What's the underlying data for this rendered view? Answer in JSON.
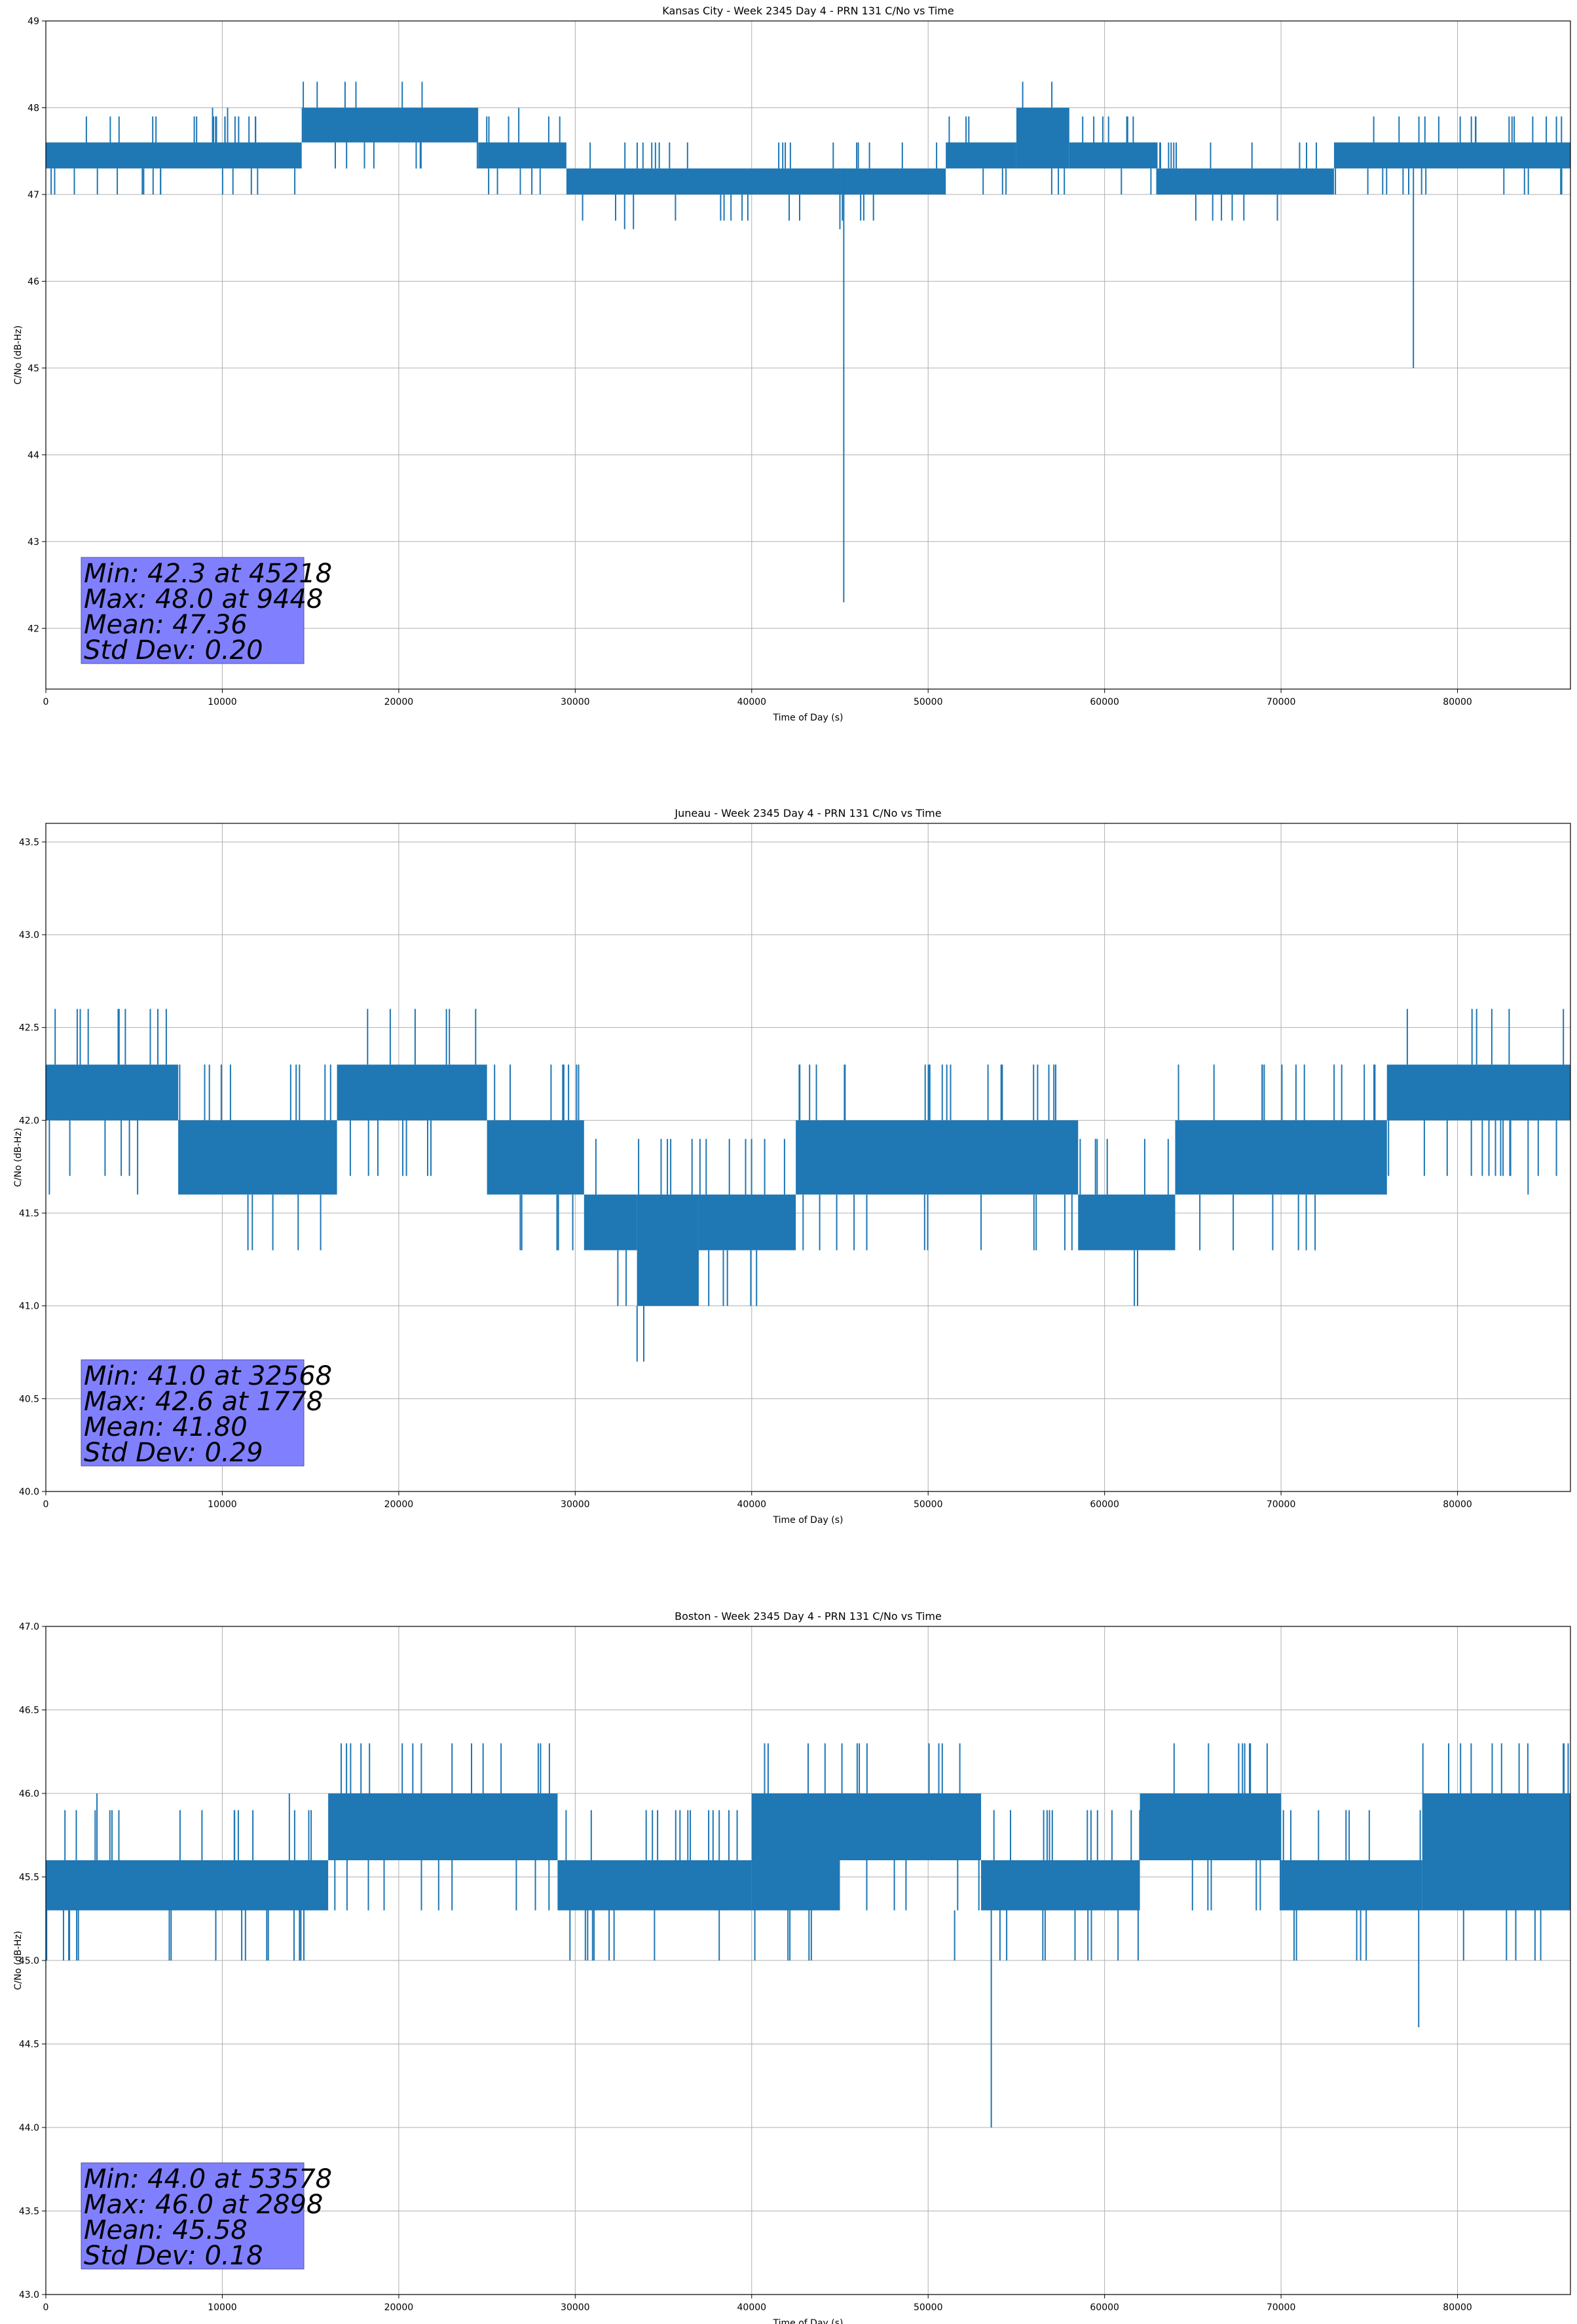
{
  "colors": {
    "series": "#1f77b4",
    "grid": "#b0b0b0",
    "stats_box": "#8080ff"
  },
  "chart_data": [
    {
      "type": "line",
      "title": "Kansas City - Week 2345 Day 4 - PRN 131 C/No vs Time",
      "xlabel": "Time of Day (s)",
      "ylabel": "C/No (dB-Hz)",
      "xlim": [
        0,
        86400
      ],
      "ylim": [
        41.3,
        49
      ],
      "x_ticks": [
        0,
        10000,
        20000,
        30000,
        40000,
        50000,
        60000,
        70000,
        80000
      ],
      "x_tick_labels": [
        "0",
        "10000",
        "20000",
        "30000",
        "40000",
        "50000",
        "60000",
        "70000",
        "80000"
      ],
      "y_ticks": [
        42,
        43,
        44,
        45,
        46,
        47,
        48,
        49
      ],
      "y_tick_labels": [
        "42",
        "43",
        "44",
        "45",
        "46",
        "47",
        "48",
        "49"
      ],
      "grid": true,
      "stats": [
        "Min: 42.3 at 45218",
        "Max: 48.0 at 9448",
        "Mean: 47.36",
        "Std Dev: 0.20"
      ],
      "bands": [
        {
          "x0": 0,
          "x1": 14500,
          "lo": 47.3,
          "hi": 47.6
        },
        {
          "x0": 14500,
          "x1": 24500,
          "lo": 47.6,
          "hi": 48.0
        },
        {
          "x0": 24500,
          "x1": 29500,
          "lo": 47.3,
          "hi": 47.6
        },
        {
          "x0": 29500,
          "x1": 51000,
          "lo": 47.0,
          "hi": 47.3
        },
        {
          "x0": 51000,
          "x1": 55000,
          "lo": 47.3,
          "hi": 47.6
        },
        {
          "x0": 55000,
          "x1": 58000,
          "lo": 47.3,
          "hi": 48.0
        },
        {
          "x0": 58000,
          "x1": 63000,
          "lo": 47.3,
          "hi": 47.6
        },
        {
          "x0": 63000,
          "x1": 73000,
          "lo": 47.0,
          "hi": 47.3
        },
        {
          "x0": 73000,
          "x1": 86400,
          "lo": 47.3,
          "hi": 47.6
        }
      ],
      "spikes": [
        {
          "x": 45218,
          "lo": 42.3,
          "hi": 47.3
        },
        {
          "x": 45000,
          "lo": 46.6,
          "hi": 47.3
        },
        {
          "x": 32800,
          "lo": 46.6,
          "hi": 47.0
        },
        {
          "x": 33300,
          "lo": 46.6,
          "hi": 47.0
        },
        {
          "x": 77500,
          "lo": 45.0,
          "hi": 47.3
        },
        {
          "x": 9448,
          "lo": 47.6,
          "hi": 48.0
        },
        {
          "x": 10300,
          "lo": 47.6,
          "hi": 48.0
        },
        {
          "x": 500,
          "lo": 47.0,
          "hi": 47.3
        },
        {
          "x": 6500,
          "lo": 47.0,
          "hi": 47.3
        },
        {
          "x": 12000,
          "lo": 47.0,
          "hi": 47.3
        },
        {
          "x": 26800,
          "lo": 47.6,
          "hi": 48.0
        }
      ]
    },
    {
      "type": "line",
      "title": "Juneau - Week 2345 Day 4 - PRN 131 C/No vs Time",
      "xlabel": "Time of Day (s)",
      "ylabel": "C/No (dB-Hz)",
      "xlim": [
        0,
        86400
      ],
      "ylim": [
        40.0,
        43.6
      ],
      "x_ticks": [
        0,
        10000,
        20000,
        30000,
        40000,
        50000,
        60000,
        70000,
        80000
      ],
      "x_tick_labels": [
        "0",
        "10000",
        "20000",
        "30000",
        "40000",
        "50000",
        "60000",
        "70000",
        "80000"
      ],
      "y_ticks": [
        40.0,
        40.5,
        41.0,
        41.5,
        42.0,
        42.5,
        43.0,
        43.5
      ],
      "y_tick_labels": [
        "40.0",
        "40.5",
        "41.0",
        "41.5",
        "42.0",
        "42.5",
        "43.0",
        "43.5"
      ],
      "grid": true,
      "stats": [
        "Min: 41.0 at 32568",
        "Max: 42.6 at 1778",
        "Mean: 41.80",
        "Std Dev: 0.29"
      ],
      "bands": [
        {
          "x0": 0,
          "x1": 7500,
          "lo": 42.0,
          "hi": 42.3
        },
        {
          "x0": 7500,
          "x1": 16500,
          "lo": 41.6,
          "hi": 42.0
        },
        {
          "x0": 16500,
          "x1": 25000,
          "lo": 42.0,
          "hi": 42.3
        },
        {
          "x0": 25000,
          "x1": 30500,
          "lo": 41.6,
          "hi": 42.0
        },
        {
          "x0": 30500,
          "x1": 33500,
          "lo": 41.3,
          "hi": 41.6
        },
        {
          "x0": 33500,
          "x1": 37000,
          "lo": 41.0,
          "hi": 41.6
        },
        {
          "x0": 37000,
          "x1": 42500,
          "lo": 41.3,
          "hi": 41.6
        },
        {
          "x0": 42500,
          "x1": 58500,
          "lo": 41.6,
          "hi": 42.0
        },
        {
          "x0": 58500,
          "x1": 64000,
          "lo": 41.3,
          "hi": 41.6
        },
        {
          "x0": 64000,
          "x1": 76000,
          "lo": 41.6,
          "hi": 42.0
        },
        {
          "x0": 76000,
          "x1": 86400,
          "lo": 42.0,
          "hi": 42.3
        }
      ],
      "spikes": [
        {
          "x": 1778,
          "lo": 42.3,
          "hi": 42.6
        },
        {
          "x": 1950,
          "lo": 42.3,
          "hi": 42.6
        },
        {
          "x": 4100,
          "lo": 42.3,
          "hi": 42.6
        },
        {
          "x": 22700,
          "lo": 42.3,
          "hi": 42.6
        },
        {
          "x": 86000,
          "lo": 42.3,
          "hi": 42.6
        },
        {
          "x": 14300,
          "lo": 41.3,
          "hi": 41.6
        },
        {
          "x": 200,
          "lo": 41.6,
          "hi": 42.0
        },
        {
          "x": 5200,
          "lo": 41.6,
          "hi": 42.0
        },
        {
          "x": 49800,
          "lo": 41.3,
          "hi": 41.6
        },
        {
          "x": 53000,
          "lo": 41.3,
          "hi": 41.6
        },
        {
          "x": 84000,
          "lo": 41.6,
          "hi": 42.0
        }
      ]
    },
    {
      "type": "line",
      "title": "Boston - Week 2345 Day 4 - PRN 131 C/No vs Time",
      "xlabel": "Time of Day (s)",
      "ylabel": "C/No (dB-Hz)",
      "xlim": [
        0,
        86400
      ],
      "ylim": [
        43.0,
        47.0
      ],
      "x_ticks": [
        0,
        10000,
        20000,
        30000,
        40000,
        50000,
        60000,
        70000,
        80000
      ],
      "x_tick_labels": [
        "0",
        "10000",
        "20000",
        "30000",
        "40000",
        "50000",
        "60000",
        "70000",
        "80000"
      ],
      "y_ticks": [
        43.0,
        43.5,
        44.0,
        44.5,
        45.0,
        45.5,
        46.0,
        46.5,
        47.0
      ],
      "y_tick_labels": [
        "43.0",
        "43.5",
        "44.0",
        "44.5",
        "45.0",
        "45.5",
        "46.0",
        "46.5",
        "47.0"
      ],
      "grid": true,
      "stats": [
        "Min: 44.0 at 53578",
        "Max: 46.0 at 2898",
        "Mean: 45.58",
        "Std Dev: 0.18"
      ],
      "bands": [
        {
          "x0": 0,
          "x1": 16000,
          "lo": 45.3,
          "hi": 45.6
        },
        {
          "x0": 16000,
          "x1": 29000,
          "lo": 45.6,
          "hi": 46.0
        },
        {
          "x0": 29000,
          "x1": 40000,
          "lo": 45.3,
          "hi": 45.6
        },
        {
          "x0": 40000,
          "x1": 45000,
          "lo": 45.3,
          "hi": 46.0
        },
        {
          "x0": 45000,
          "x1": 53000,
          "lo": 45.6,
          "hi": 46.0
        },
        {
          "x0": 53000,
          "x1": 62000,
          "lo": 45.3,
          "hi": 45.6
        },
        {
          "x0": 62000,
          "x1": 70000,
          "lo": 45.6,
          "hi": 46.0
        },
        {
          "x0": 70000,
          "x1": 78000,
          "lo": 45.3,
          "hi": 45.6
        },
        {
          "x0": 78000,
          "x1": 86400,
          "lo": 45.3,
          "hi": 46.0
        }
      ],
      "spikes": [
        {
          "x": 53578,
          "lo": 44.0,
          "hi": 45.3
        },
        {
          "x": 77800,
          "lo": 44.6,
          "hi": 45.3
        },
        {
          "x": 2898,
          "lo": 45.6,
          "hi": 46.0
        },
        {
          "x": 1000,
          "lo": 45.0,
          "hi": 45.3
        },
        {
          "x": 1300,
          "lo": 45.0,
          "hi": 45.3
        },
        {
          "x": 11100,
          "lo": 45.0,
          "hi": 45.3
        },
        {
          "x": 29700,
          "lo": 45.0,
          "hi": 45.3
        },
        {
          "x": 32200,
          "lo": 45.0,
          "hi": 45.3
        },
        {
          "x": 51500,
          "lo": 45.0,
          "hi": 45.3
        },
        {
          "x": 56500,
          "lo": 45.0,
          "hi": 45.3
        },
        {
          "x": 13800,
          "lo": 45.6,
          "hi": 46.0
        }
      ]
    }
  ]
}
